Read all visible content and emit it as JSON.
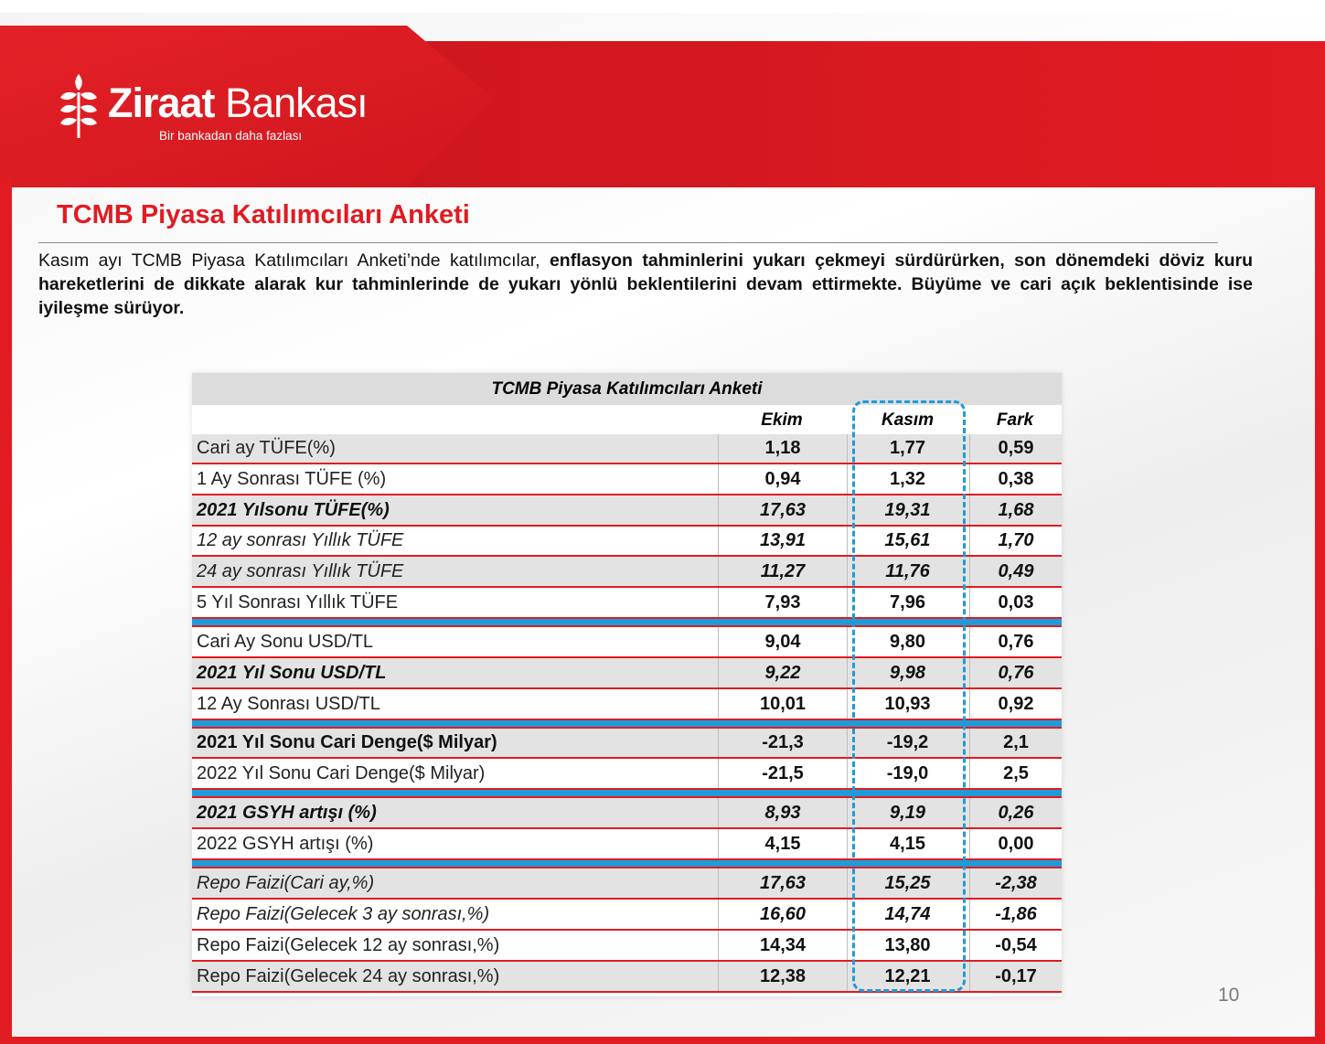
{
  "brand": {
    "name_bold": "Ziraat",
    "name_light": "Bankası",
    "tagline": "Bir bankadan daha fazlası",
    "primary_color": "#e11b22",
    "logo_icon": "wheat-icon"
  },
  "title": "TCMB Piyasa Katılımcıları Anketi",
  "intro": {
    "plain": "Kasım ayı TCMB Piyasa Katılımcıları Anketi’nde katılımcılar, ",
    "bold": "enflasyon tahminlerini yukarı çekmeyi sürdürürken, son dönemdeki döviz kuru hareketlerini de dikkate alarak kur tahminlerinde de yukarı yönlü beklentilerini devam ettirmekte. Büyüme ve cari açık beklentisinde ise iyileşme sürüyor."
  },
  "table": {
    "title": "TCMB Piyasa Katılımcıları Anketi",
    "columns": [
      "Ekim",
      "Kasım",
      "Fark"
    ],
    "highlight_color": "#1f9bd7",
    "groups": [
      {
        "rows": [
          {
            "label": "Cari ay TÜFE(%)",
            "ekim": "1,18",
            "kasim": "1,77",
            "fark": "0,59",
            "shaded": true,
            "bold": false,
            "italic": false
          },
          {
            "label": "1 Ay Sonrası TÜFE (%)",
            "ekim": "0,94",
            "kasim": "1,32",
            "fark": "0,38",
            "shaded": false,
            "bold": false,
            "italic": false
          },
          {
            "label": "2021 Yılsonu TÜFE(%)",
            "ekim": "17,63",
            "kasim": "19,31",
            "fark": "1,68",
            "shaded": true,
            "bold": true,
            "italic": true
          },
          {
            "label": "12 ay sonrası Yıllık TÜFE",
            "ekim": "13,91",
            "kasim": "15,61",
            "fark": "1,70",
            "shaded": false,
            "bold": false,
            "italic": true
          },
          {
            "label": "24 ay sonrası Yıllık TÜFE",
            "ekim": "11,27",
            "kasim": "11,76",
            "fark": "0,49",
            "shaded": true,
            "bold": false,
            "italic": true
          },
          {
            "label": "5 Yıl Sonrası Yıllık TÜFE",
            "ekim": "7,93",
            "kasim": "7,96",
            "fark": "0,03",
            "shaded": false,
            "bold": false,
            "italic": false
          }
        ]
      },
      {
        "rows": [
          {
            "label": "Cari Ay Sonu USD/TL",
            "ekim": "9,04",
            "kasim": "9,80",
            "fark": "0,76",
            "shaded": false,
            "bold": false,
            "italic": false
          },
          {
            "label": "2021 Yıl Sonu USD/TL",
            "ekim": "9,22",
            "kasim": "9,98",
            "fark": "0,76",
            "shaded": true,
            "bold": true,
            "italic": true
          },
          {
            "label": "12 Ay Sonrası USD/TL",
            "ekim": "10,01",
            "kasim": "10,93",
            "fark": "0,92",
            "shaded": false,
            "bold": false,
            "italic": false
          }
        ]
      },
      {
        "rows": [
          {
            "label": "2021 Yıl Sonu Cari Denge($ Milyar)",
            "ekim": "-21,3",
            "kasim": "-19,2",
            "fark": "2,1",
            "shaded": true,
            "bold": true,
            "italic": false
          },
          {
            "label": "2022 Yıl Sonu Cari Denge($ Milyar)",
            "ekim": "-21,5",
            "kasim": "-19,0",
            "fark": "2,5",
            "shaded": false,
            "bold": false,
            "italic": false
          }
        ]
      },
      {
        "rows": [
          {
            "label": "2021 GSYH artışı (%)",
            "ekim": "8,93",
            "kasim": "9,19",
            "fark": "0,26",
            "shaded": true,
            "bold": true,
            "italic": true
          },
          {
            "label": "2022 GSYH artışı (%)",
            "ekim": "4,15",
            "kasim": "4,15",
            "fark": "0,00",
            "shaded": false,
            "bold": false,
            "italic": false
          }
        ]
      },
      {
        "rows": [
          {
            "label": "Repo Faizi(Cari ay,%)",
            "ekim": "17,63",
            "kasim": "15,25",
            "fark": "-2,38",
            "shaded": true,
            "bold": false,
            "italic": true
          },
          {
            "label": "Repo Faizi(Gelecek 3 ay sonrası,%)",
            "ekim": "16,60",
            "kasim": "14,74",
            "fark": "-1,86",
            "shaded": false,
            "bold": false,
            "italic": true
          },
          {
            "label": "Repo Faizi(Gelecek 12 ay sonrası,%)",
            "ekim": "14,34",
            "kasim": "13,80",
            "fark": "-0,54",
            "shaded": false,
            "bold": false,
            "italic": false
          },
          {
            "label": "Repo Faizi(Gelecek 24 ay sonrası,%)",
            "ekim": "12,38",
            "kasim": "12,21",
            "fark": "-0,17",
            "shaded": true,
            "bold": false,
            "italic": false
          }
        ]
      }
    ]
  },
  "page_number": "10"
}
